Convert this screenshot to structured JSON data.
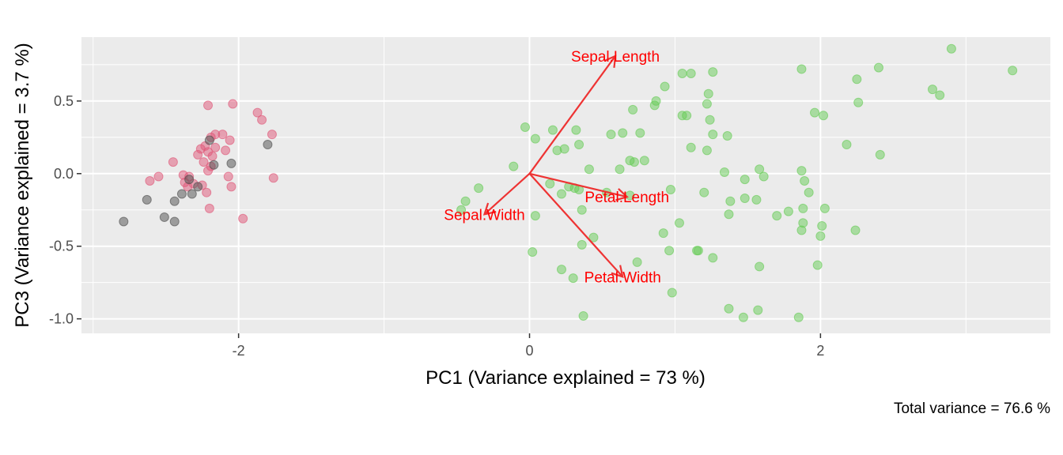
{
  "chart_data": {
    "type": "scatter",
    "title": "",
    "xlabel": "PC1 (Variance explained = 73 %)",
    "ylabel": "PC3 (Variance explained = 3.7 %)",
    "caption": "Total variance = 76.6 %",
    "xlim": [
      -3.08,
      3.58
    ],
    "ylim": [
      -1.1,
      0.94
    ],
    "x_ticks": [
      -2,
      0,
      2
    ],
    "x_tick_labels": [
      "-2",
      "0",
      "2"
    ],
    "y_ticks": [
      -1.0,
      -0.5,
      0.0,
      0.5
    ],
    "y_tick_labels": [
      "-1.0",
      "-0.5",
      "0.0",
      "0.5"
    ],
    "grid": true,
    "legend": "none",
    "colors": {
      "panel_bg": "#ebebeb",
      "grid": "#ffffff",
      "arrow": "#ee3333",
      "arrow_label": "#ff0000"
    },
    "series": [
      {
        "color": "#e05577",
        "points": [
          [
            -2.21,
            0.47
          ],
          [
            -2.04,
            0.48
          ],
          [
            -1.87,
            0.42
          ],
          [
            -1.84,
            0.37
          ],
          [
            -1.77,
            0.27
          ],
          [
            -2.11,
            0.27
          ],
          [
            -2.16,
            0.27
          ],
          [
            -2.19,
            0.25
          ],
          [
            -2.06,
            0.23
          ],
          [
            -2.23,
            0.19
          ],
          [
            -2.16,
            0.18
          ],
          [
            -2.26,
            0.17
          ],
          [
            -2.09,
            0.16
          ],
          [
            -2.21,
            0.15
          ],
          [
            -2.28,
            0.13
          ],
          [
            -2.18,
            0.12
          ],
          [
            -2.45,
            0.08
          ],
          [
            -2.24,
            0.08
          ],
          [
            -2.19,
            0.05
          ],
          [
            -2.21,
            0.02
          ],
          [
            -2.38,
            -0.01
          ],
          [
            -2.55,
            -0.02
          ],
          [
            -2.34,
            -0.02
          ],
          [
            -2.07,
            -0.02
          ],
          [
            -1.76,
            -0.03
          ],
          [
            -2.61,
            -0.05
          ],
          [
            -2.37,
            -0.06
          ],
          [
            -2.31,
            -0.07
          ],
          [
            -2.25,
            -0.08
          ],
          [
            -2.05,
            -0.09
          ],
          [
            -2.35,
            -0.09
          ],
          [
            -2.22,
            -0.13
          ],
          [
            -2.2,
            -0.24
          ],
          [
            -1.97,
            -0.31
          ]
        ]
      },
      {
        "color": "#4d4d4d",
        "points": [
          [
            -2.2,
            0.23
          ],
          [
            -1.8,
            0.2
          ],
          [
            -2.05,
            0.07
          ],
          [
            -2.17,
            0.06
          ],
          [
            -2.34,
            -0.04
          ],
          [
            -2.28,
            -0.09
          ],
          [
            -2.32,
            -0.14
          ],
          [
            -2.39,
            -0.14
          ],
          [
            -2.63,
            -0.18
          ],
          [
            -2.44,
            -0.19
          ],
          [
            -2.51,
            -0.3
          ],
          [
            -2.79,
            -0.33
          ],
          [
            -2.44,
            -0.33
          ]
        ]
      },
      {
        "color": "#66cc55",
        "points": [
          [
            2.9,
            0.86
          ],
          [
            3.32,
            0.71
          ],
          [
            2.4,
            0.73
          ],
          [
            1.87,
            0.72
          ],
          [
            1.26,
            0.7
          ],
          [
            1.05,
            0.69
          ],
          [
            1.11,
            0.69
          ],
          [
            2.25,
            0.65
          ],
          [
            0.93,
            0.6
          ],
          [
            1.23,
            0.55
          ],
          [
            2.77,
            0.58
          ],
          [
            2.82,
            0.54
          ],
          [
            0.87,
            0.5
          ],
          [
            0.86,
            0.47
          ],
          [
            1.22,
            0.48
          ],
          [
            2.26,
            0.49
          ],
          [
            0.71,
            0.44
          ],
          [
            1.96,
            0.42
          ],
          [
            2.02,
            0.4
          ],
          [
            1.05,
            0.4
          ],
          [
            1.08,
            0.4
          ],
          [
            1.24,
            0.37
          ],
          [
            -0.03,
            0.32
          ],
          [
            0.16,
            0.3
          ],
          [
            0.32,
            0.3
          ],
          [
            0.64,
            0.28
          ],
          [
            0.76,
            0.28
          ],
          [
            0.56,
            0.27
          ],
          [
            1.26,
            0.27
          ],
          [
            1.36,
            0.26
          ],
          [
            0.04,
            0.24
          ],
          [
            2.18,
            0.2
          ],
          [
            0.34,
            0.2
          ],
          [
            1.11,
            0.18
          ],
          [
            0.19,
            0.16
          ],
          [
            1.22,
            0.16
          ],
          [
            0.24,
            0.17
          ],
          [
            2.41,
            0.13
          ],
          [
            0.69,
            0.09
          ],
          [
            0.72,
            0.08
          ],
          [
            0.79,
            0.09
          ],
          [
            -0.11,
            0.05
          ],
          [
            0.41,
            0.03
          ],
          [
            0.62,
            0.03
          ],
          [
            1.58,
            0.03
          ],
          [
            1.87,
            0.02
          ],
          [
            1.34,
            0.01
          ],
          [
            1.61,
            -0.02
          ],
          [
            1.48,
            -0.04
          ],
          [
            1.89,
            -0.05
          ],
          [
            0.14,
            -0.07
          ],
          [
            0.97,
            -0.11
          ],
          [
            1.2,
            -0.13
          ],
          [
            0.34,
            -0.11
          ],
          [
            0.27,
            -0.09
          ],
          [
            0.31,
            -0.1
          ],
          [
            0.53,
            -0.13
          ],
          [
            0.69,
            -0.15
          ],
          [
            -0.35,
            -0.1
          ],
          [
            1.48,
            -0.17
          ],
          [
            1.56,
            -0.18
          ],
          [
            1.92,
            -0.13
          ],
          [
            0.22,
            -0.14
          ],
          [
            -0.44,
            -0.19
          ],
          [
            1.38,
            -0.19
          ],
          [
            1.88,
            -0.24
          ],
          [
            1.78,
            -0.26
          ],
          [
            1.7,
            -0.29
          ],
          [
            0.36,
            -0.25
          ],
          [
            1.37,
            -0.28
          ],
          [
            -0.47,
            -0.25
          ],
          [
            0.04,
            -0.29
          ],
          [
            2.03,
            -0.24
          ],
          [
            1.03,
            -0.34
          ],
          [
            1.88,
            -0.34
          ],
          [
            2.01,
            -0.36
          ],
          [
            1.87,
            -0.39
          ],
          [
            2.24,
            -0.39
          ],
          [
            0.92,
            -0.41
          ],
          [
            2.0,
            -0.43
          ],
          [
            0.44,
            -0.44
          ],
          [
            0.36,
            -0.49
          ],
          [
            0.96,
            -0.53
          ],
          [
            1.15,
            -0.53
          ],
          [
            1.16,
            -0.53
          ],
          [
            0.02,
            -0.54
          ],
          [
            1.26,
            -0.58
          ],
          [
            0.74,
            -0.61
          ],
          [
            0.22,
            -0.66
          ],
          [
            1.98,
            -0.63
          ],
          [
            1.58,
            -0.64
          ],
          [
            0.3,
            -0.72
          ],
          [
            0.98,
            -0.82
          ],
          [
            1.37,
            -0.93
          ],
          [
            1.57,
            -0.94
          ],
          [
            1.47,
            -0.99
          ],
          [
            1.85,
            -0.99
          ],
          [
            0.37,
            -0.98
          ]
        ]
      }
    ],
    "loadings": [
      {
        "name": "Sepal.Length",
        "x": 0.59,
        "y": 0.81
      },
      {
        "name": "Sepal.Width",
        "x": -0.31,
        "y": -0.28
      },
      {
        "name": "Petal.Length",
        "x": 0.67,
        "y": -0.16
      },
      {
        "name": "Petal.Width",
        "x": 0.64,
        "y": -0.71
      }
    ]
  }
}
